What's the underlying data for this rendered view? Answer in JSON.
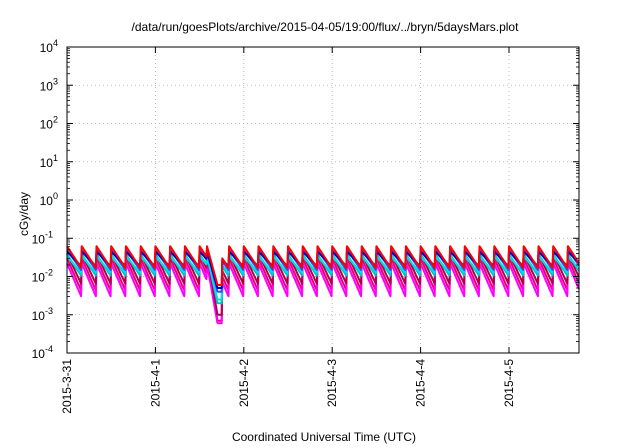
{
  "chart_data": {
    "type": "line",
    "title": "/data/run/goesPlots/archive/2015-04-05/19:00/flux/../bryn/5daysMars.plot",
    "xlabel": "Coordinated Universal Time (UTC)",
    "ylabel": "cGy/day",
    "yscale": "log",
    "ylim_exponents": [
      -4,
      4
    ],
    "y_ticks": [
      {
        "base": "10",
        "exp": "-4",
        "value": 0.0001
      },
      {
        "base": "10",
        "exp": "-3",
        "value": 0.001
      },
      {
        "base": "10",
        "exp": "-2",
        "value": 0.01
      },
      {
        "base": "10",
        "exp": "-1",
        "value": 0.1
      },
      {
        "base": "10",
        "exp": "0",
        "value": 1
      },
      {
        "base": "10",
        "exp": "1",
        "value": 10
      },
      {
        "base": "10",
        "exp": "2",
        "value": 100
      },
      {
        "base": "10",
        "exp": "3",
        "value": 1000
      },
      {
        "base": "10",
        "exp": "4",
        "value": 10000
      }
    ],
    "xlim": [
      "2015-03-31T00:00",
      "2015-04-05T19:00"
    ],
    "x_ticks": [
      "2015-3-31",
      "2015-4-1",
      "2015-4-2",
      "2015-4-3",
      "2015-4-4",
      "2015-4-5"
    ],
    "grid": true,
    "sawtooth_period_hours": 4,
    "dip": {
      "start": "2015-04-01T14:00",
      "end": "2015-04-01T18:00"
    },
    "series": [
      {
        "color": "#e8007a",
        "peak": 0.03,
        "trough": 0.004,
        "dip_min": 0.0007
      },
      {
        "color": "#ff00ff",
        "peak": 0.022,
        "trough": 0.0028,
        "dip_min": 0.0006
      },
      {
        "color": "#b00050",
        "peak": 0.04,
        "trough": 0.006,
        "dip_min": 0.001
      },
      {
        "color": "#00c0c0",
        "peak": 0.038,
        "trough": 0.01,
        "dip_min": 0.002
      },
      {
        "color": "#00e0e0",
        "peak": 0.034,
        "trough": 0.012,
        "dip_min": 0.0025
      },
      {
        "color": "#3050ff",
        "peak": 0.05,
        "trough": 0.014,
        "dip_min": 0.004
      },
      {
        "color": "#0000c0",
        "peak": 0.045,
        "trough": 0.018,
        "dip_min": 0.005
      },
      {
        "color": "#ff0000",
        "peak": 0.062,
        "trough": 0.016,
        "dip_min": 0.006
      }
    ]
  }
}
